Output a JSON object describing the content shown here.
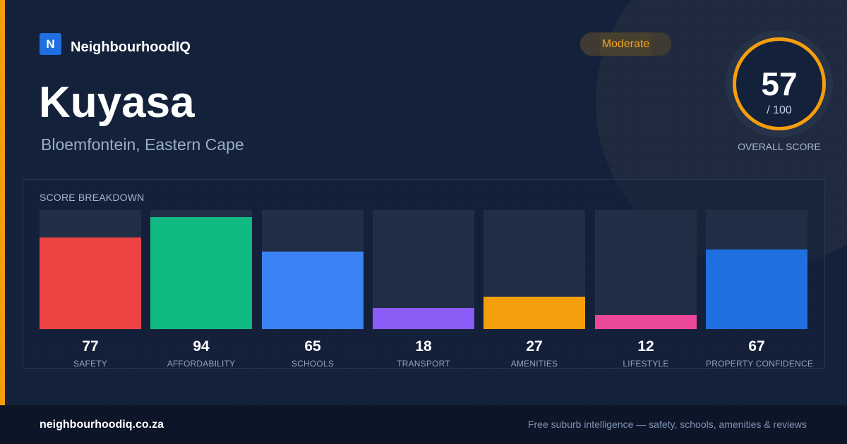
{
  "brand": {
    "mark": "N",
    "name": "NeighbourhoodIQ"
  },
  "suburb": {
    "name": "Kuyasa",
    "location": "Bloemfontein, Eastern Cape"
  },
  "rating_badge": "Moderate",
  "overall": {
    "score": "57",
    "max": "/ 100",
    "label": "OVERALL SCORE"
  },
  "breakdown": {
    "title": "SCORE BREAKDOWN",
    "items": [
      {
        "value": "77",
        "label": "SAFETY",
        "score": 77,
        "color": "#ef4444"
      },
      {
        "value": "94",
        "label": "AFFORDABILITY",
        "score": 94,
        "color": "#10b981"
      },
      {
        "value": "65",
        "label": "SCHOOLS",
        "score": 65,
        "color": "#3b82f6"
      },
      {
        "value": "18",
        "label": "TRANSPORT",
        "score": 18,
        "color": "#8b5cf6"
      },
      {
        "value": "27",
        "label": "AMENITIES",
        "score": 27,
        "color": "#f59e0b"
      },
      {
        "value": "12",
        "label": "LIFESTYLE",
        "score": 12,
        "color": "#ec4899"
      },
      {
        "value": "67",
        "label": "PROPERTY CONFIDENCE",
        "score": 67,
        "color": "#1f6fe0"
      }
    ]
  },
  "footer": {
    "domain": "neighbourhoodiq.co.za",
    "tagline": "Free suburb intelligence — safety, schools, amenities & reviews"
  },
  "colors": {
    "accent": "#f59e0b",
    "background": "#14213b",
    "brand": "#1f6fe0"
  }
}
